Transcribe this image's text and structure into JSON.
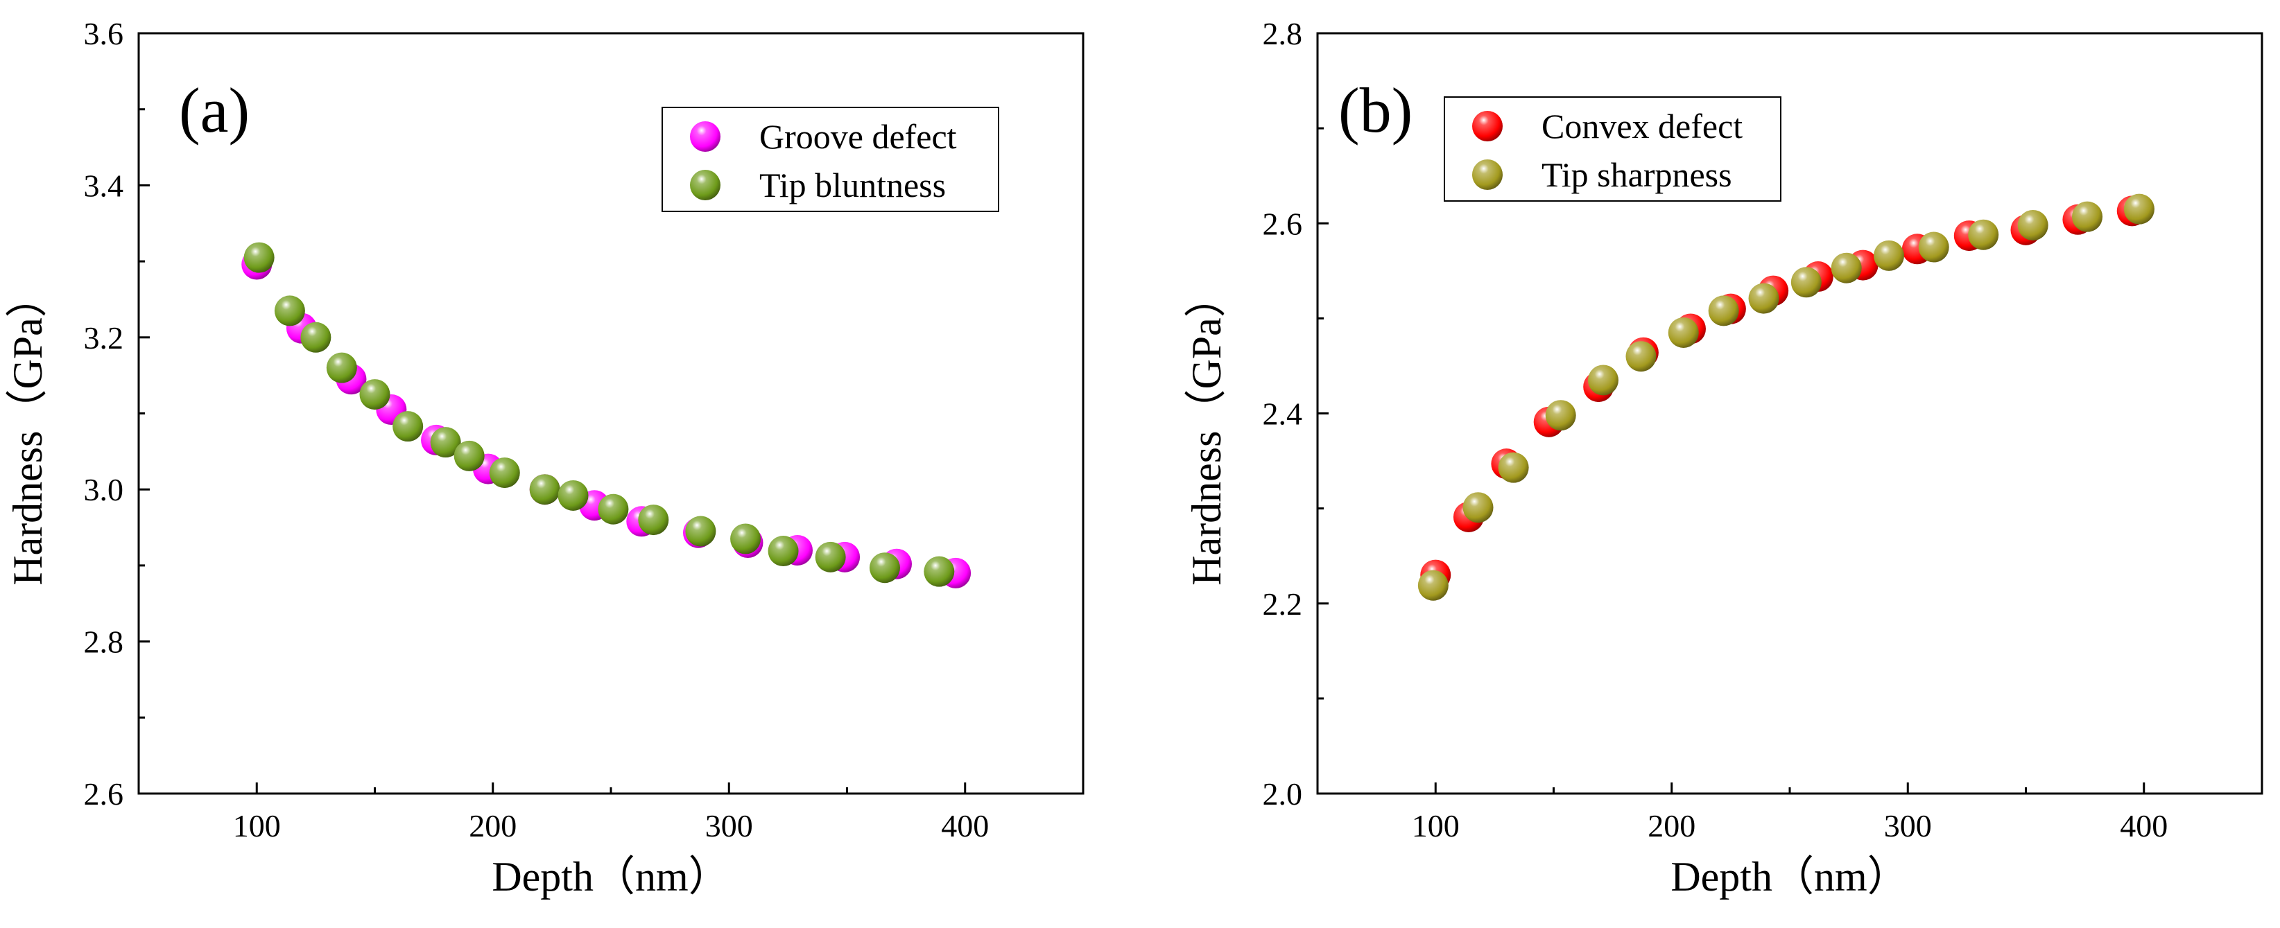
{
  "chart_data": [
    {
      "type": "scatter",
      "panel_label": "(a)",
      "xlabel": "Depth（nm）",
      "ylabel": "Hardness（GPa）",
      "xlim": [
        50,
        450
      ],
      "ylim": [
        2.6,
        3.6
      ],
      "x_ticks": [
        100,
        200,
        300,
        400
      ],
      "y_ticks": [
        2.6,
        2.8,
        3.0,
        3.2,
        3.4,
        3.6
      ],
      "x_tick_labels": [
        "100",
        "200",
        "300",
        "400"
      ],
      "y_tick_labels": [
        "2.6",
        "2.8",
        "3.0",
        "3.2",
        "3.4",
        "3.6"
      ],
      "grid": false,
      "legend_position": "top-right",
      "series": [
        {
          "name": "Groove defect",
          "color": "#ff00ff",
          "x": [
            100,
            119,
            140,
            157,
            176,
            198,
            222,
            243,
            263,
            287,
            308,
            329,
            349,
            371,
            396
          ],
          "y": [
            3.296,
            3.212,
            3.145,
            3.105,
            3.065,
            3.027,
            3.0,
            2.979,
            2.958,
            2.943,
            2.93,
            2.92,
            2.911,
            2.902,
            2.89
          ]
        },
        {
          "name": "Tip bluntness",
          "color": "#6e9b1a",
          "x": [
            101,
            114,
            125,
            136,
            150,
            164,
            180,
            190,
            205,
            222,
            234,
            251,
            268,
            288,
            307,
            323,
            343,
            366,
            389
          ],
          "y": [
            3.305,
            3.235,
            3.2,
            3.16,
            3.125,
            3.083,
            3.062,
            3.044,
            3.022,
            3.0,
            2.992,
            2.974,
            2.96,
            2.945,
            2.935,
            2.919,
            2.911,
            2.897,
            2.892
          ]
        }
      ]
    },
    {
      "type": "scatter",
      "panel_label": "(b)",
      "xlabel": "Depth（nm）",
      "ylabel": "Hardness（GPa）",
      "xlim": [
        50,
        450
      ],
      "ylim": [
        2.0,
        2.8
      ],
      "x_ticks": [
        100,
        200,
        300,
        400
      ],
      "y_ticks": [
        2.0,
        2.2,
        2.4,
        2.6,
        2.8
      ],
      "x_tick_labels": [
        "100",
        "200",
        "300",
        "400"
      ],
      "y_tick_labels": [
        "2.0",
        "2.2",
        "2.4",
        "2.6",
        "2.8"
      ],
      "grid": false,
      "legend_position": "top-left",
      "series": [
        {
          "name": "Convex defect",
          "color": "#ff0000",
          "x": [
            100,
            114,
            130,
            148,
            169,
            188,
            208,
            225,
            243,
            262,
            281,
            304,
            326,
            350,
            372,
            395
          ],
          "y": [
            2.23,
            2.291,
            2.347,
            2.391,
            2.428,
            2.464,
            2.489,
            2.51,
            2.529,
            2.544,
            2.556,
            2.573,
            2.587,
            2.593,
            2.604,
            2.613
          ]
        },
        {
          "name": "Tip sharpness",
          "color": "#a39a1e",
          "x": [
            99,
            118,
            133,
            153,
            171,
            187,
            205,
            222,
            239,
            257,
            274,
            292,
            311,
            332,
            353,
            376,
            398
          ],
          "y": [
            2.219,
            2.301,
            2.343,
            2.398,
            2.435,
            2.46,
            2.485,
            2.508,
            2.521,
            2.538,
            2.553,
            2.566,
            2.575,
            2.588,
            2.598,
            2.607,
            2.615
          ]
        }
      ]
    }
  ]
}
